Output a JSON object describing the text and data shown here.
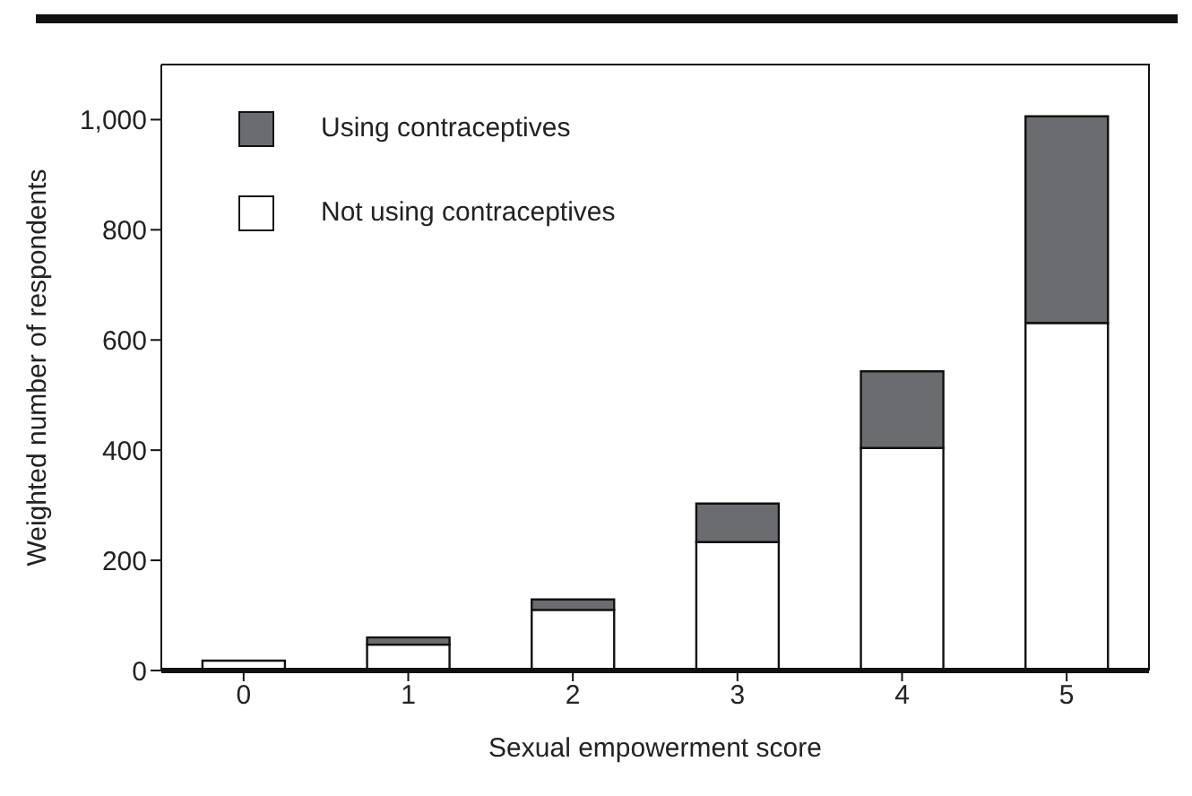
{
  "chart_data": {
    "type": "bar",
    "stacked": true,
    "xlabel": "Sexual empowerment score",
    "ylabel": "Weighted number of respondents",
    "categories": [
      "0",
      "1",
      "2",
      "3",
      "4",
      "5"
    ],
    "series": [
      {
        "name": "Not using contraceptives",
        "color": "#ffffff",
        "values": [
          18,
          47,
          110,
          233,
          404,
          631
        ]
      },
      {
        "name": "Using contraceptives",
        "color": "#6b6c6f",
        "values": [
          0,
          13,
          19,
          70,
          139,
          375
        ]
      }
    ],
    "ylim": [
      0,
      1100
    ],
    "yticks": [
      0,
      {
        "value": 200,
        "label": "200"
      },
      {
        "value": 400,
        "label": "400"
      },
      {
        "value": 600,
        "label": "600"
      },
      {
        "value": 800,
        "label": "800"
      },
      {
        "value": 1000,
        "label": "1,000"
      }
    ],
    "legend": "top left"
  }
}
